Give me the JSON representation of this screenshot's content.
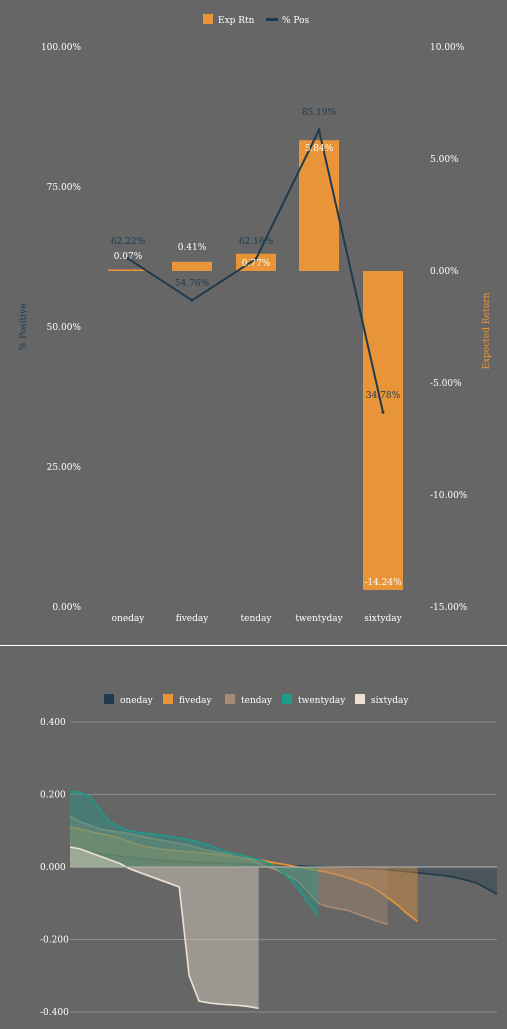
{
  "chart_data": [
    {
      "type": "bar",
      "categories": [
        "oneday",
        "fiveday",
        "tenday",
        "twentyday",
        "sixtyday"
      ],
      "series": [
        {
          "name": "Exp Rtn",
          "type": "bar",
          "axis": "right",
          "values": [
            0.07,
            0.41,
            0.77,
            5.84,
            -14.24
          ],
          "labels": [
            "0.07%",
            "0.41%",
            "0.77%",
            "5.84%",
            "-14.24%"
          ]
        },
        {
          "name": "% Pos",
          "type": "line",
          "axis": "left",
          "values": [
            62.22,
            54.76,
            62.16,
            85.19,
            34.78
          ],
          "labels": [
            "62.22%",
            "54.76%",
            "62.16%",
            "85.19%",
            "34.78%"
          ]
        }
      ],
      "ylabel_left": "% Positive",
      "ylabel_right": "Expected Return",
      "ylim_left": [
        0,
        100
      ],
      "ylim_right": [
        -15,
        10
      ],
      "yticks_left": [
        "0.00%",
        "25.00%",
        "50.00%",
        "75.00%",
        "100.00%"
      ],
      "yticks_right": [
        "-15.00%",
        "-10.00%",
        "-5.00%",
        "0.00%",
        "5.00%",
        "10.00%"
      ],
      "legend": "top-center",
      "grid": false,
      "colors": {
        "bar": "#E8953A",
        "line": "#1F3A4D",
        "text": "#FFFFFF",
        "label_dark": "#1F3A4D"
      }
    },
    {
      "type": "area",
      "ylim": [
        -0.4,
        0.4
      ],
      "yticks": [
        "-0.400",
        "-0.200",
        "0.000",
        "0.200",
        "0.400"
      ],
      "grid": true,
      "legend": "top-center",
      "series": [
        {
          "name": "oneday",
          "color": "#1F3A4D",
          "values": [
            0.05,
            0.046,
            0.042,
            0.038,
            0.034,
            0.03,
            0.027,
            0.024,
            0.021,
            0.019,
            0.017,
            0.015,
            0.014,
            0.013,
            0.012,
            0.011,
            0.01,
            0.009,
            0.008,
            0.007,
            0.006,
            0.005,
            0.004,
            0.003,
            0.002,
            0.001,
            0.0,
            -0.001,
            -0.002,
            -0.003,
            -0.004,
            -0.006,
            -0.008,
            -0.01,
            -0.013,
            -0.016,
            -0.019,
            -0.022,
            -0.025,
            -0.03,
            -0.037,
            -0.045,
            -0.06,
            -0.075
          ]
        },
        {
          "name": "fiveday",
          "color": "#E8953A",
          "values": [
            0.11,
            0.105,
            0.098,
            0.092,
            0.087,
            0.08,
            0.07,
            0.06,
            0.055,
            0.05,
            0.047,
            0.045,
            0.042,
            0.04,
            0.037,
            0.034,
            0.03,
            0.027,
            0.023,
            0.02,
            0.015,
            0.01,
            0.005,
            0.0,
            -0.005,
            -0.01,
            -0.015,
            -0.022,
            -0.03,
            -0.04,
            -0.05,
            -0.065,
            -0.085,
            -0.105,
            -0.13,
            -0.15
          ]
        },
        {
          "name": "tenday",
          "color": "#A78A73",
          "values": [
            0.14,
            0.125,
            0.115,
            0.105,
            0.1,
            0.096,
            0.092,
            0.085,
            0.08,
            0.075,
            0.07,
            0.065,
            0.06,
            0.052,
            0.045,
            0.04,
            0.035,
            0.028,
            0.02,
            0.01,
            0.0,
            -0.01,
            -0.025,
            -0.04,
            -0.07,
            -0.1,
            -0.11,
            -0.115,
            -0.12,
            -0.13,
            -0.14,
            -0.15,
            -0.158
          ]
        },
        {
          "name": "twentyday",
          "color": "#1E9A8A",
          "values": [
            0.21,
            0.205,
            0.195,
            0.16,
            0.125,
            0.11,
            0.1,
            0.095,
            0.092,
            0.088,
            0.085,
            0.08,
            0.075,
            0.068,
            0.06,
            0.05,
            0.04,
            0.035,
            0.028,
            0.02,
            0.01,
            -0.005,
            -0.03,
            -0.06,
            -0.1,
            -0.135
          ]
        },
        {
          "name": "sixtyday",
          "color": "#EDE1D3",
          "values": [
            0.055,
            0.05,
            0.04,
            0.03,
            0.02,
            0.01,
            -0.005,
            -0.015,
            -0.025,
            -0.035,
            -0.045,
            -0.055,
            -0.3,
            -0.37,
            -0.375,
            -0.378,
            -0.38,
            -0.382,
            -0.385,
            -0.39
          ]
        }
      ]
    }
  ]
}
